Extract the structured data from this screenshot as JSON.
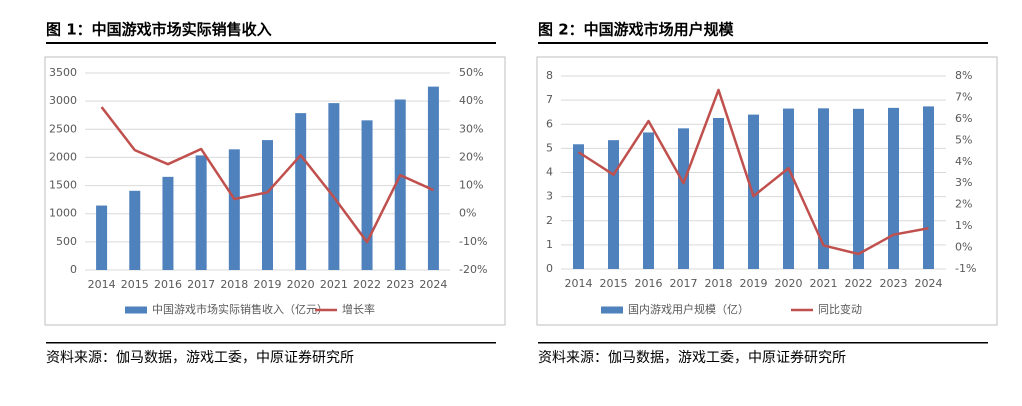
{
  "chart_data": [
    {
      "type": "combo",
      "title": "图 1：中国游戏市场实际销售收入",
      "source": "资料来源：伽马数据，游戏工委，中原证券研究所",
      "categories": [
        "2014",
        "2015",
        "2016",
        "2017",
        "2018",
        "2019",
        "2020",
        "2021",
        "2022",
        "2023",
        "2024"
      ],
      "series": [
        {
          "name": "中国游戏市场实际销售收入（亿元）",
          "type": "bar",
          "color": "#4f81bd",
          "values": [
            1145,
            1407,
            1655,
            2036,
            2144,
            2308,
            2787,
            2965,
            2659,
            3029,
            3258
          ]
        },
        {
          "name": "增长率",
          "type": "line",
          "axis": "y2",
          "color": "#c0504d",
          "values": [
            37.9,
            22.6,
            17.6,
            23.0,
            5.2,
            7.6,
            20.8,
            5.9,
            -10.1,
            13.7,
            8.4
          ]
        }
      ],
      "ylim": [
        0,
        3500
      ],
      "yticks": [
        0,
        500,
        1000,
        1500,
        2000,
        2500,
        3000,
        3500
      ],
      "y2lim": [
        -20,
        50
      ],
      "y2ticks": [
        {
          "value": -20,
          "label": "-20%"
        },
        {
          "value": -10,
          "label": "-10%"
        },
        {
          "value": 0,
          "label": "0%"
        },
        {
          "value": 10,
          "label": "10%"
        },
        {
          "value": 20,
          "label": "20%"
        },
        {
          "value": 30,
          "label": "30%"
        },
        {
          "value": 40,
          "label": "40%"
        },
        {
          "value": 50,
          "label": "50%"
        }
      ],
      "legend": "bottom"
    },
    {
      "type": "combo",
      "title": "图 2：中国游戏市场用户规模",
      "source": "资料来源：伽马数据，游戏工委，中原证券研究所",
      "categories": [
        "2014",
        "2015",
        "2016",
        "2017",
        "2018",
        "2019",
        "2020",
        "2021",
        "2022",
        "2023",
        "2024"
      ],
      "series": [
        {
          "name": "国内游戏用户规模（亿）",
          "type": "bar",
          "color": "#4f81bd",
          "values": [
            5.17,
            5.34,
            5.66,
            5.83,
            6.26,
            6.4,
            6.65,
            6.66,
            6.64,
            6.68,
            6.74
          ]
        },
        {
          "name": "同比变动",
          "type": "line",
          "axis": "y2",
          "color": "#c0504d",
          "values": [
            4.45,
            3.4,
            5.9,
            3.0,
            7.35,
            2.4,
            3.7,
            0.1,
            -0.3,
            0.6,
            0.9
          ]
        }
      ],
      "ylim": [
        0,
        8
      ],
      "yticks": [
        0,
        1,
        2,
        3,
        4,
        5,
        6,
        7,
        8
      ],
      "y2lim": [
        -1,
        8
      ],
      "y2ticks": [
        {
          "value": -1,
          "label": "-1%"
        },
        {
          "value": 0,
          "label": "0%"
        },
        {
          "value": 1,
          "label": "1%"
        },
        {
          "value": 2,
          "label": "2%"
        },
        {
          "value": 3,
          "label": "3%"
        },
        {
          "value": 4,
          "label": "4%"
        },
        {
          "value": 5,
          "label": "5%"
        },
        {
          "value": 6,
          "label": "6%"
        },
        {
          "value": 7,
          "label": "7%"
        },
        {
          "value": 8,
          "label": "8%"
        }
      ],
      "legend": "bottom"
    }
  ]
}
